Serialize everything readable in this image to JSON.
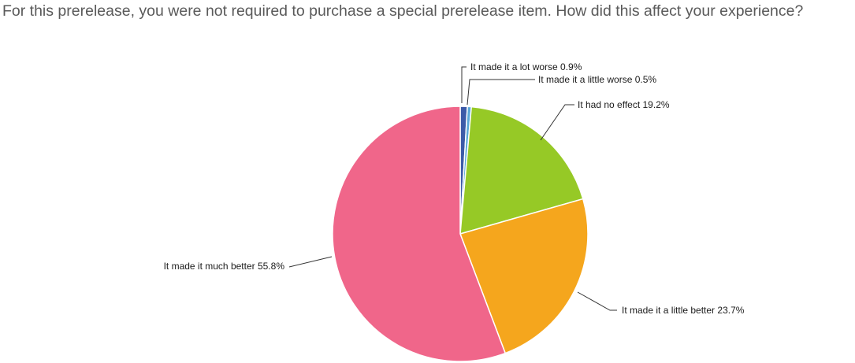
{
  "question": {
    "title": "For this prerelease, you were not required to purchase a special prerelease item. How did this affect your experience?"
  },
  "chart_data": {
    "type": "pie",
    "title": "For this prerelease, you were not required to purchase a special prerelease item. How did this affect your experience?",
    "legend": "none",
    "slices": [
      {
        "label": "It made it a lot worse 0.9%",
        "category": "It made it a lot worse",
        "value": 0.9,
        "color": "#3c5ba8"
      },
      {
        "label": "It made it a little worse 0.5%",
        "category": "It made it a little worse",
        "value": 0.5,
        "color": "#5aa8d8"
      },
      {
        "label": "It had no effect 19.2%",
        "category": "It had no effect",
        "value": 19.2,
        "color": "#96c926"
      },
      {
        "label": "It made it a little better 23.7%",
        "category": "It made it a little better",
        "value": 23.7,
        "color": "#f5a61d"
      },
      {
        "label": "It made it much better 55.8%",
        "category": "It made it much better",
        "value": 55.8,
        "color": "#f0668a"
      }
    ]
  }
}
